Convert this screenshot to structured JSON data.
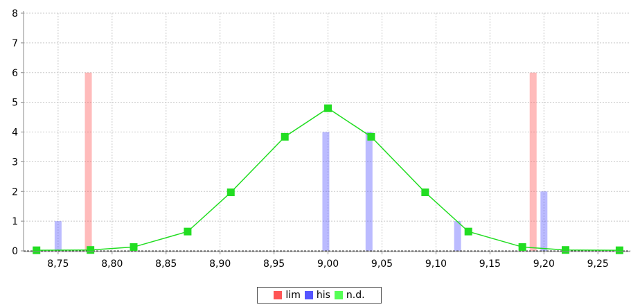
{
  "chart_data": {
    "type": "bar",
    "xlim": [
      8.718,
      9.28
    ],
    "ylim": [
      0,
      8
    ],
    "grid": true,
    "legend_placement": "bottom-center",
    "x_ticks": [
      8.75,
      8.8,
      8.85,
      8.9,
      8.95,
      9.0,
      9.05,
      9.1,
      9.15,
      9.2,
      9.25
    ],
    "x_tick_labels": [
      "8,75",
      "8,80",
      "8,85",
      "8,90",
      "8,95",
      "9,00",
      "9,05",
      "9,10",
      "9,15",
      "9,20",
      "9,25"
    ],
    "y_ticks": [
      0,
      1,
      2,
      3,
      4,
      5,
      6,
      7,
      8
    ],
    "y_tick_labels": [
      "0",
      "1",
      "2",
      "3",
      "4",
      "5",
      "6",
      "7",
      "8"
    ],
    "series": [
      {
        "name": "lim",
        "type": "bar",
        "color": "#ff5555",
        "points": [
          {
            "x": 8.778,
            "y": 6
          },
          {
            "x": 9.19,
            "y": 6
          }
        ]
      },
      {
        "name": "his",
        "type": "bar",
        "color": "#5555ff",
        "points": [
          {
            "x": 8.75,
            "y": 1
          },
          {
            "x": 8.998,
            "y": 4
          },
          {
            "x": 9.038,
            "y": 4
          },
          {
            "x": 9.12,
            "y": 1
          },
          {
            "x": 9.2,
            "y": 2
          }
        ]
      },
      {
        "name": "n.d.",
        "type": "line",
        "color": "#22dd22",
        "points": [
          {
            "x": 8.73,
            "y": 0.02
          },
          {
            "x": 8.78,
            "y": 0.03
          },
          {
            "x": 8.82,
            "y": 0.13
          },
          {
            "x": 8.87,
            "y": 0.65
          },
          {
            "x": 8.91,
            "y": 1.97
          },
          {
            "x": 8.96,
            "y": 3.84
          },
          {
            "x": 9.0,
            "y": 4.8
          },
          {
            "x": 9.04,
            "y": 3.84
          },
          {
            "x": 9.09,
            "y": 1.97
          },
          {
            "x": 9.13,
            "y": 0.65
          },
          {
            "x": 9.18,
            "y": 0.13
          },
          {
            "x": 9.22,
            "y": 0.03
          },
          {
            "x": 9.27,
            "y": 0.02
          }
        ]
      }
    ]
  },
  "legend": {
    "items": [
      {
        "label": "lim",
        "color": "#ff5555"
      },
      {
        "label": "his",
        "color": "#5555ff"
      },
      {
        "label": "n.d.",
        "color": "#55ff55"
      }
    ]
  }
}
